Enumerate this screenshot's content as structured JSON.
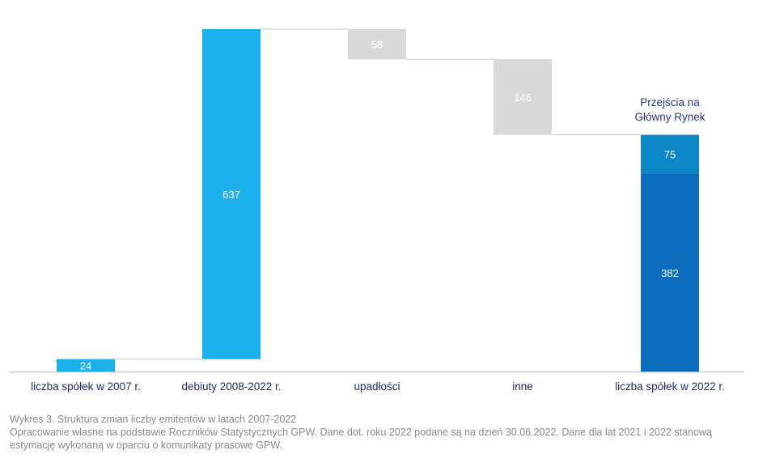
{
  "chart_data": {
    "type": "bar",
    "subtype": "waterfall",
    "categories": [
      "liczba spółek w 2007 r.",
      "debiuty 2008-2022 r.",
      "upadłości",
      "inne",
      "liczba spółek w 2022 r."
    ],
    "bars": [
      {
        "category": "liczba spółek w 2007 r.",
        "base": 0,
        "value": 24,
        "label": "24",
        "color": "#1ab1ec",
        "kind": "total"
      },
      {
        "category": "debiuty 2008-2022 r.",
        "base": 24,
        "value": 637,
        "label": "637",
        "color": "#1ab1ec",
        "kind": "increase"
      },
      {
        "category": "upadłości",
        "base": 603,
        "value": 58,
        "label": "58",
        "color": "#d9d9d9",
        "kind": "decrease"
      },
      {
        "category": "inne",
        "base": 457,
        "value": 146,
        "label": "146",
        "color": "#d9d9d9",
        "kind": "decrease"
      },
      {
        "category": "liczba spółek w 2022 r.",
        "base": 0,
        "value": 382,
        "label": "382",
        "color": "#0b6bbd",
        "kind": "total"
      },
      {
        "category": "liczba spółek w 2022 r.",
        "base": 382,
        "value": 75,
        "label": "75",
        "color": "#0b86c6",
        "kind": "total"
      }
    ],
    "annotation": "Przejścia na\nGłówny Rynek",
    "ylim": [
      0,
      661
    ],
    "grid": false,
    "legend": "none"
  },
  "caption": {
    "title": "Wykres 3. Struktura zmian liczby emitentów w latach 2007-2022",
    "source": "Opracowanie własne na podstawie Roczników Statystycznych GPW. Dane dot. roku 2022 podane są na dzień 30.06.2022. Dane dla lat 2021 i 2022 stanową estymację wykonaną w oparciu o komunikaty prasowe  GPW."
  },
  "colors": {
    "category_label": "#1f2b6e",
    "annotation": "#2a3a7c",
    "value_label": "#ffffff",
    "connector": "#cccccc",
    "axis": "#bdbdbd"
  }
}
